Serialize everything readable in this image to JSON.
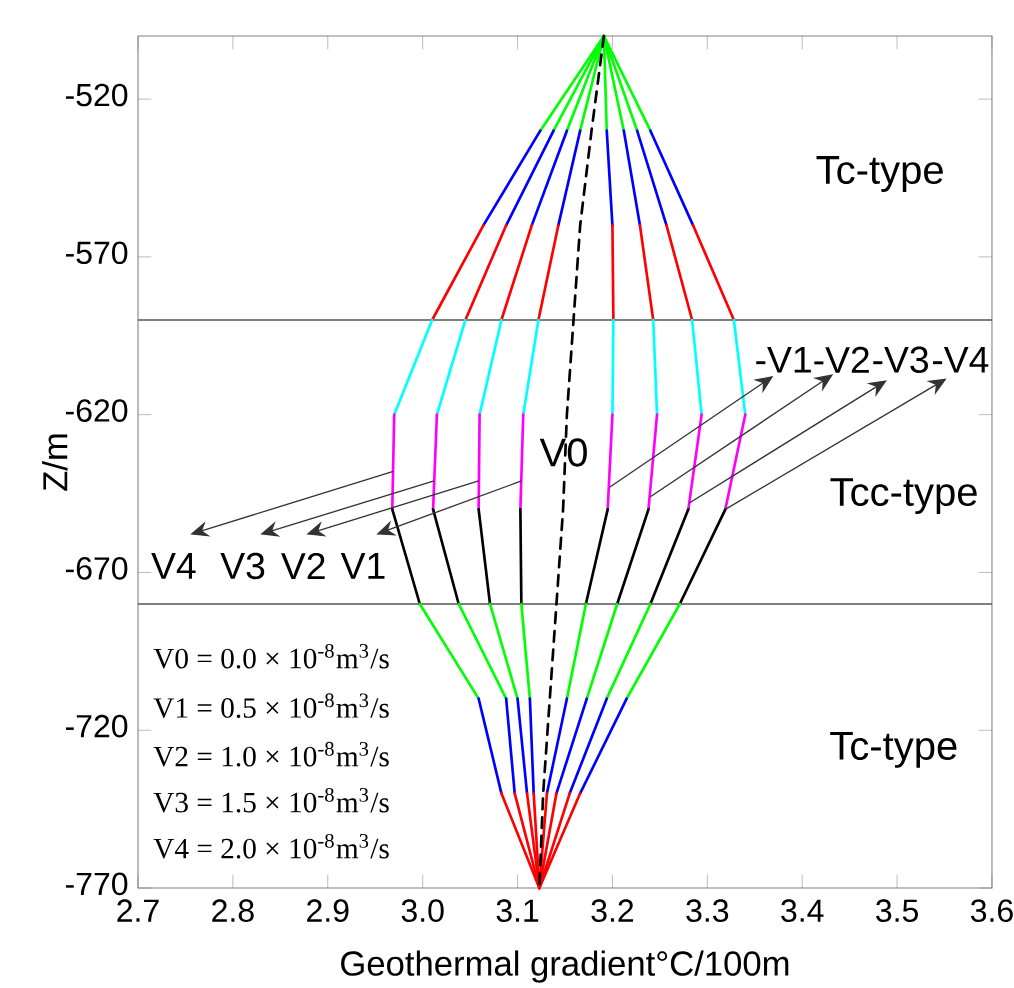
{
  "chart_data": {
    "type": "line",
    "xlabel": "Geothermal gradient°C/100m",
    "ylabel": "Z/m",
    "xlim": [
      2.7,
      3.6
    ],
    "ylim": [
      -770,
      -500
    ],
    "xticks": [
      2.7,
      2.8,
      2.9,
      {
        "value": 3.0,
        "label": "3.0"
      },
      3.1,
      3.2,
      3.3,
      3.4,
      3.5,
      3.6
    ],
    "yticks": [
      -770,
      -720,
      -670,
      -620,
      -570,
      -520
    ],
    "series": [
      {
        "color": "#00ff00",
        "x": [
          3.191,
          3.124
        ],
        "values": [
          -500,
          -530
        ]
      },
      {
        "color": "#0000ff",
        "x": [
          3.124,
          3.064
        ],
        "values": [
          -530,
          -560
        ]
      },
      {
        "color": "#ff0000",
        "x": [
          3.064,
          3.01
        ],
        "values": [
          -560,
          -590
        ]
      },
      {
        "color": "#00ffff",
        "x": [
          3.01,
          2.97
        ],
        "values": [
          -590,
          -620
        ]
      },
      {
        "color": "#ff00ff",
        "x": [
          2.97,
          2.968
        ],
        "values": [
          -620,
          -650
        ]
      },
      {
        "color": "#000000",
        "x": [
          2.968,
          2.997
        ],
        "values": [
          -650,
          -680
        ]
      },
      {
        "color": "#00ff00",
        "x": [
          2.997,
          3.059
        ],
        "values": [
          -680,
          -710
        ]
      },
      {
        "color": "#0000ff",
        "x": [
          3.059,
          3.083
        ],
        "values": [
          -710,
          -740
        ]
      },
      {
        "color": "#ff0000",
        "x": [
          3.083,
          3.123
        ],
        "values": [
          -740,
          -770
        ]
      },
      {
        "color": "#00ff00",
        "x": [
          3.191,
          3.138
        ],
        "values": [
          -500,
          -530
        ]
      },
      {
        "color": "#0000ff",
        "x": [
          3.138,
          3.088
        ],
        "values": [
          -530,
          -560
        ]
      },
      {
        "color": "#ff0000",
        "x": [
          3.088,
          3.045
        ],
        "values": [
          -560,
          -590
        ]
      },
      {
        "color": "#00ffff",
        "x": [
          3.045,
          3.015
        ],
        "values": [
          -590,
          -620
        ]
      },
      {
        "color": "#ff00ff",
        "x": [
          3.015,
          3.011
        ],
        "values": [
          -620,
          -650
        ]
      },
      {
        "color": "#000000",
        "x": [
          3.011,
          3.038
        ],
        "values": [
          -650,
          -680
        ]
      },
      {
        "color": "#00ff00",
        "x": [
          3.038,
          3.088
        ],
        "values": [
          -680,
          -710
        ]
      },
      {
        "color": "#0000ff",
        "x": [
          3.088,
          3.097
        ],
        "values": [
          -710,
          -740
        ]
      },
      {
        "color": "#ff0000",
        "x": [
          3.097,
          3.123
        ],
        "values": [
          -740,
          -770
        ]
      },
      {
        "color": "#00ff00",
        "x": [
          3.191,
          3.152
        ],
        "values": [
          -500,
          -530
        ]
      },
      {
        "color": "#0000ff",
        "x": [
          3.152,
          3.115
        ],
        "values": [
          -530,
          -560
        ]
      },
      {
        "color": "#ff0000",
        "x": [
          3.115,
          3.083
        ],
        "values": [
          -560,
          -590
        ]
      },
      {
        "color": "#00ffff",
        "x": [
          3.083,
          3.06
        ],
        "values": [
          -590,
          -620
        ]
      },
      {
        "color": "#ff00ff",
        "x": [
          3.06,
          3.059
        ],
        "values": [
          -620,
          -650
        ]
      },
      {
        "color": "#000000",
        "x": [
          3.059,
          3.071
        ],
        "values": [
          -650,
          -680
        ]
      },
      {
        "color": "#00ff00",
        "x": [
          3.071,
          3.1
        ],
        "values": [
          -680,
          -710
        ]
      },
      {
        "color": "#0000ff",
        "x": [
          3.1,
          3.11
        ],
        "values": [
          -710,
          -740
        ]
      },
      {
        "color": "#ff0000",
        "x": [
          3.11,
          3.123
        ],
        "values": [
          -740,
          -770
        ]
      },
      {
        "color": "#00ff00",
        "x": [
          3.191,
          3.166
        ],
        "values": [
          -500,
          -530
        ]
      },
      {
        "color": "#0000ff",
        "x": [
          3.166,
          3.143
        ],
        "values": [
          -530,
          -560
        ]
      },
      {
        "color": "#ff0000",
        "x": [
          3.143,
          3.122
        ],
        "values": [
          -560,
          -590
        ]
      },
      {
        "color": "#00ffff",
        "x": [
          3.122,
          3.106
        ],
        "values": [
          -590,
          -620
        ]
      },
      {
        "color": "#ff00ff",
        "x": [
          3.106,
          3.103
        ],
        "values": [
          -620,
          -650
        ]
      },
      {
        "color": "#000000",
        "x": [
          3.103,
          3.104
        ],
        "values": [
          -650,
          -680
        ]
      },
      {
        "color": "#00ff00",
        "x": [
          3.104,
          3.113
        ],
        "values": [
          -680,
          -710
        ]
      },
      {
        "color": "#0000ff",
        "x": [
          3.113,
          3.117
        ],
        "values": [
          -710,
          -740
        ]
      },
      {
        "color": "#ff0000",
        "x": [
          3.117,
          3.123
        ],
        "values": [
          -740,
          -770
        ]
      },
      {
        "color": "#00ff00",
        "x": [
          3.191,
          3.194
        ],
        "values": [
          -500,
          -530
        ]
      },
      {
        "color": "#0000ff",
        "x": [
          3.194,
          3.2
        ],
        "values": [
          -530,
          -560
        ]
      },
      {
        "color": "#ff0000",
        "x": [
          3.2,
          3.201
        ],
        "values": [
          -560,
          -590
        ]
      },
      {
        "color": "#00ffff",
        "x": [
          3.201,
          3.2
        ],
        "values": [
          -590,
          -620
        ]
      },
      {
        "color": "#ff00ff",
        "x": [
          3.2,
          3.195
        ],
        "values": [
          -620,
          -650
        ]
      },
      {
        "color": "#000000",
        "x": [
          3.195,
          3.172
        ],
        "values": [
          -650,
          -680
        ]
      },
      {
        "color": "#00ff00",
        "x": [
          3.172,
          3.152
        ],
        "values": [
          -680,
          -710
        ]
      },
      {
        "color": "#0000ff",
        "x": [
          3.152,
          3.131
        ],
        "values": [
          -710,
          -740
        ]
      },
      {
        "color": "#ff0000",
        "x": [
          3.131,
          3.123
        ],
        "values": [
          -740,
          -770
        ]
      },
      {
        "color": "#00ff00",
        "x": [
          3.191,
          3.212
        ],
        "values": [
          -500,
          -530
        ]
      },
      {
        "color": "#0000ff",
        "x": [
          3.212,
          3.229
        ],
        "values": [
          -530,
          -560
        ]
      },
      {
        "color": "#ff0000",
        "x": [
          3.229,
          3.243
        ],
        "values": [
          -560,
          -590
        ]
      },
      {
        "color": "#00ffff",
        "x": [
          3.243,
          3.247
        ],
        "values": [
          -590,
          -620
        ]
      },
      {
        "color": "#ff00ff",
        "x": [
          3.247,
          3.238
        ],
        "values": [
          -620,
          -650
        ]
      },
      {
        "color": "#000000",
        "x": [
          3.238,
          3.205
        ],
        "values": [
          -650,
          -680
        ]
      },
      {
        "color": "#00ff00",
        "x": [
          3.205,
          3.173
        ],
        "values": [
          -680,
          -710
        ]
      },
      {
        "color": "#0000ff",
        "x": [
          3.173,
          3.141
        ],
        "values": [
          -710,
          -740
        ]
      },
      {
        "color": "#ff0000",
        "x": [
          3.141,
          3.123
        ],
        "values": [
          -740,
          -770
        ]
      },
      {
        "color": "#00ff00",
        "x": [
          3.191,
          3.226
        ],
        "values": [
          -500,
          -530
        ]
      },
      {
        "color": "#0000ff",
        "x": [
          3.226,
          3.257
        ],
        "values": [
          -530,
          -560
        ]
      },
      {
        "color": "#ff0000",
        "x": [
          3.257,
          3.284
        ],
        "values": [
          -560,
          -590
        ]
      },
      {
        "color": "#00ffff",
        "x": [
          3.284,
          3.294
        ],
        "values": [
          -590,
          -620
        ]
      },
      {
        "color": "#ff00ff",
        "x": [
          3.294,
          3.28
        ],
        "values": [
          -620,
          -650
        ]
      },
      {
        "color": "#000000",
        "x": [
          3.28,
          3.24
        ],
        "values": [
          -650,
          -680
        ]
      },
      {
        "color": "#00ff00",
        "x": [
          3.24,
          3.194
        ],
        "values": [
          -680,
          -710
        ]
      },
      {
        "color": "#0000ff",
        "x": [
          3.194,
          3.155
        ],
        "values": [
          -710,
          -740
        ]
      },
      {
        "color": "#ff0000",
        "x": [
          3.155,
          3.123
        ],
        "values": [
          -740,
          -770
        ]
      },
      {
        "color": "#00ff00",
        "x": [
          3.191,
          3.24
        ],
        "values": [
          -500,
          -530
        ]
      },
      {
        "color": "#0000ff",
        "x": [
          3.24,
          3.285
        ],
        "values": [
          -530,
          -560
        ]
      },
      {
        "color": "#ff0000",
        "x": [
          3.285,
          3.328
        ],
        "values": [
          -560,
          -590
        ]
      },
      {
        "color": "#00ffff",
        "x": [
          3.328,
          3.34
        ],
        "values": [
          -590,
          -620
        ]
      },
      {
        "color": "#ff00ff",
        "x": [
          3.34,
          3.319
        ],
        "values": [
          -620,
          -650
        ]
      },
      {
        "color": "#000000",
        "x": [
          3.319,
          3.271
        ],
        "values": [
          -650,
          -680
        ]
      },
      {
        "color": "#00ff00",
        "x": [
          3.271,
          3.215
        ],
        "values": [
          -680,
          -710
        ]
      },
      {
        "color": "#0000ff",
        "x": [
          3.215,
          3.166
        ],
        "values": [
          -710,
          -740
        ]
      },
      {
        "color": "#ff0000",
        "x": [
          3.166,
          3.123
        ],
        "values": [
          -740,
          -770
        ]
      },
      {
        "color": "#000000",
        "line_style": "dashed",
        "x": [
          3.191,
          3.178,
          3.166,
          3.159,
          3.152,
          3.148,
          3.141,
          3.134,
          3.127,
          3.123
        ],
        "values": [
          -500,
          -530,
          -560,
          -590,
          -620,
          -650,
          -680,
          -710,
          -740,
          -770
        ]
      }
    ],
    "ref_lines": [
      {
        "axis": "y",
        "value": -590,
        "color": "#555555"
      },
      {
        "axis": "y",
        "value": -680,
        "color": "#555555"
      }
    ],
    "annotations": [
      {
        "text": "V4",
        "x": 2.969,
        "y": -638
      },
      {
        "text": "V3",
        "x": 3.012,
        "y": -641
      },
      {
        "text": "V2",
        "x": 3.059,
        "y": -641
      },
      {
        "text": "V1",
        "x": 3.104,
        "y": -641
      },
      {
        "text": "V0",
        "x": 3.149,
        "y": -632
      },
      {
        "text": "-V1",
        "x": 3.197,
        "y": -643
      },
      {
        "text": "-V2",
        "x": 3.24,
        "y": -646
      },
      {
        "text": "-V3",
        "x": 3.281,
        "y": -648
      },
      {
        "text": "-V4",
        "x": 3.319,
        "y": -650
      },
      "Tc-type",
      "Tcc-type",
      "Tc-type",
      "V0 = 0.0 × 10$^{-8}$m$^{3}$/s",
      "V1 = 0.5 × 10$^{-8}$m$^{3}$/s",
      "V2 = 1.0 × 10$^{-8}$m$^{3}$/s",
      "V3 = 1.5 × 10$^{-8}$m$^{3}$/s",
      "V4 = 2.0 × 10$^{-8}$m$^{3}$/s"
    ]
  }
}
